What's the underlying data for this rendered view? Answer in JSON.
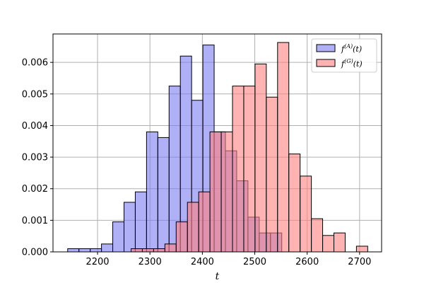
{
  "chart_data": {
    "type": "bar",
    "subtype": "overlapping-histogram",
    "xlabel": "t",
    "ylabel": "",
    "xlim": [
      2115,
      2742
    ],
    "ylim": [
      0,
      0.0069
    ],
    "bin_width": 21.5,
    "x_ticks": [
      "2200",
      "2300",
      "2400",
      "2500",
      "2600",
      "2700"
    ],
    "y_ticks": [
      "0.000",
      "0.001",
      "0.002",
      "0.003",
      "0.004",
      "0.005",
      "0.006"
    ],
    "grid": true,
    "legend_position": "top-right",
    "series": [
      {
        "name": "f^(A)(t)",
        "legend_base": "f",
        "legend_sup": "(A)",
        "legend_arg": "(t)",
        "color": "#7c7cf0",
        "bin_starts": [
          2143,
          2164.5,
          2186,
          2207.5,
          2229,
          2250.5,
          2272,
          2293.5,
          2315,
          2336.5,
          2358,
          2379.5,
          2401,
          2422.5,
          2444,
          2465.5,
          2487,
          2508.5,
          2530,
          2551.5
        ],
        "values": [
          0.0001,
          0.0001,
          0.0001,
          0.00025,
          0.00095,
          0.00157,
          0.0019,
          0.0038,
          0.00362,
          0.00525,
          0.0062,
          0.0048,
          0.00655,
          0.0038,
          0.0032,
          0.00225,
          0.0011,
          0.0006,
          0.0006,
          0.0
        ]
      },
      {
        "name": "f^(G)(t)",
        "legend_base": "f",
        "legend_sup": "(G)",
        "legend_arg": "(t)",
        "color": "#ff8080",
        "bin_starts": [
          2264,
          2285.5,
          2307,
          2328.5,
          2350,
          2371.5,
          2393,
          2414.5,
          2436,
          2457.5,
          2479,
          2500.5,
          2522,
          2543.5,
          2565,
          2586.5,
          2608,
          2629.5,
          2651,
          2672.5,
          2694
        ],
        "values": [
          0.0001,
          0.0001,
          0.0001,
          0.00025,
          0.00095,
          0.00157,
          0.0019,
          0.0038,
          0.0038,
          0.00525,
          0.00525,
          0.00595,
          0.0049,
          0.00663,
          0.0031,
          0.0024,
          0.00105,
          0.00052,
          0.0006,
          0.0,
          0.00018
        ]
      }
    ]
  }
}
